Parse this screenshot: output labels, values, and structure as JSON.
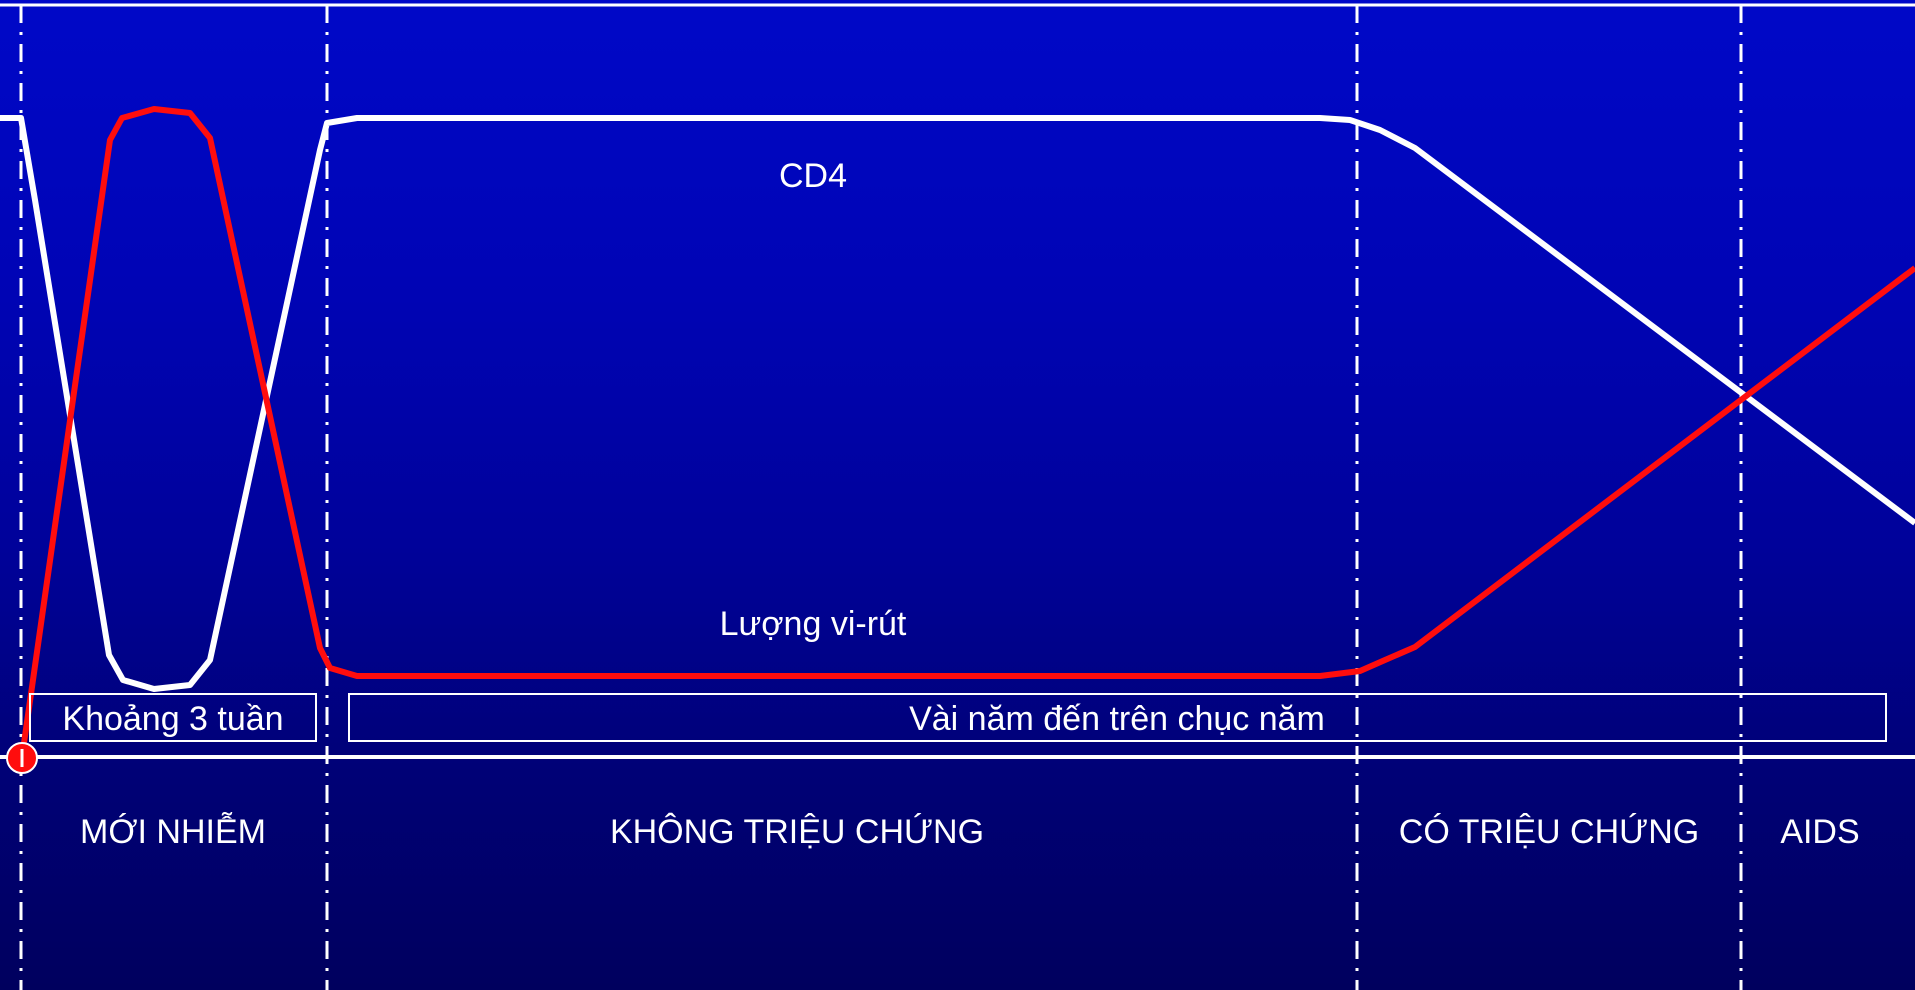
{
  "colors": {
    "cd4_line": "#ffffff",
    "viral_line": "#ff0d0d",
    "text": "#ffffff",
    "background_top": "#0008c8",
    "background_bottom": "#00005e"
  },
  "curve_labels": {
    "cd4": "CD4",
    "viral_load": "Lượng vi-rút"
  },
  "duration_boxes": {
    "acute": "Khoảng 3 tuần",
    "latent": "Vài năm đến trên chục năm"
  },
  "stages": {
    "acute": "MỚI NHIỄM",
    "asymptomatic": "KHÔNG TRIỆU CHỨNG",
    "symptomatic": "CÓ TRIỆU CHỨNG",
    "aids": "AIDS"
  }
}
